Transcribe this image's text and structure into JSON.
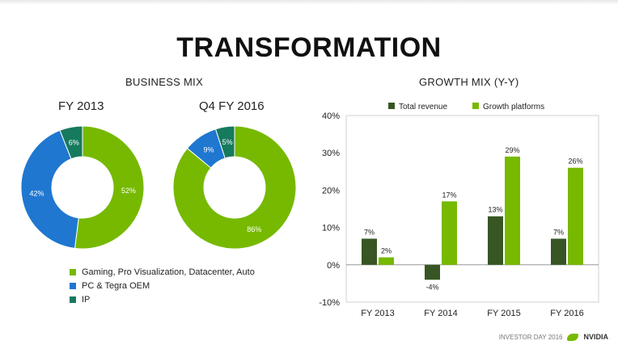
{
  "title": "TRANSFORMATION",
  "left_section_title": "BUSINESS MIX",
  "right_section_title": "GROWTH MIX (Y-Y)",
  "legend": [
    {
      "label": "Gaming, Pro Visualization, Datacenter, Auto",
      "color": "#76b900"
    },
    {
      "label": "PC & Tegra OEM",
      "color": "#1f77d0"
    },
    {
      "label": "IP",
      "color": "#167a5e"
    }
  ],
  "footer": {
    "text": "INVESTOR DAY 2016",
    "brand": "NVIDIA"
  },
  "chart_data": [
    {
      "type": "pie",
      "title": "FY 2013",
      "labels": [
        "Gaming, Pro Visualization, Datacenter, Auto",
        "PC & Tegra OEM",
        "IP"
      ],
      "values": [
        52,
        42,
        6
      ],
      "value_labels": [
        "52%",
        "42%",
        "6%"
      ],
      "colors": [
        "#76b900",
        "#1f77d0",
        "#167a5e"
      ]
    },
    {
      "type": "pie",
      "title": "Q4 FY 2016",
      "labels": [
        "Gaming, Pro Visualization, Datacenter, Auto",
        "PC & Tegra OEM",
        "IP"
      ],
      "values": [
        86,
        9,
        5
      ],
      "value_labels": [
        "86%",
        "9%",
        "5%"
      ],
      "colors": [
        "#76b900",
        "#1f77d0",
        "#167a5e"
      ]
    },
    {
      "type": "bar",
      "title": "GROWTH MIX (Y-Y)",
      "categories": [
        "FY 2013",
        "FY 2014",
        "FY 2015",
        "FY 2016"
      ],
      "series": [
        {
          "name": "Total revenue",
          "color": "#375623",
          "values": [
            7,
            -4,
            13,
            7
          ],
          "labels": [
            "7%",
            "-4%",
            "13%",
            "7%"
          ]
        },
        {
          "name": "Growth platforms",
          "color": "#76b900",
          "values": [
            2,
            17,
            29,
            26
          ],
          "labels": [
            "2%",
            "17%",
            "29%",
            "26%"
          ]
        }
      ],
      "ylim": [
        -10,
        40
      ],
      "yticks": [
        40,
        30,
        20,
        10,
        0,
        -10
      ],
      "ytick_labels": [
        "40%",
        "30%",
        "20%",
        "10%",
        "0%",
        "-10%"
      ],
      "legend_position": "top",
      "grid": false
    }
  ]
}
